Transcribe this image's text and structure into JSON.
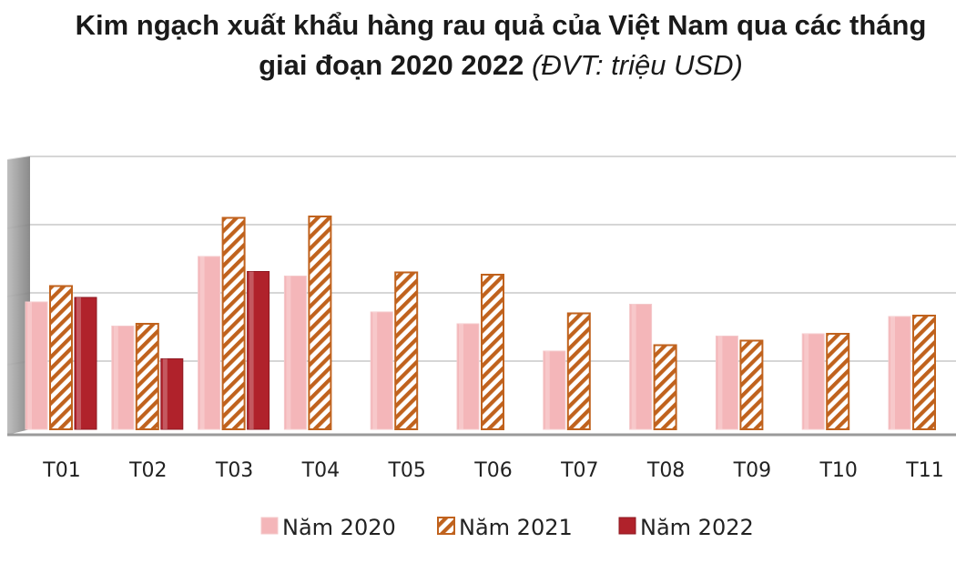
{
  "title": {
    "line1": "Kim ngạch xuất khẩu hàng rau quả của Việt Nam qua các tháng",
    "line2_main": "giai đoạn 2020 2022",
    "line2_unit": "(ĐVT: triệu USD)"
  },
  "colors": {
    "s2020_fill": "#f4b6b9",
    "s2021_stroke": "#c0621d",
    "s2022_fill": "#b0222b",
    "grid": "#d6d6d6",
    "axis_wall": "#8a8a8a"
  },
  "chart_data": {
    "type": "bar",
    "title": "Kim ngạch xuất khẩu hàng rau quả của Việt Nam qua các tháng giai đoạn 2020 2022 (ĐVT: triệu USD)",
    "categories": [
      "T01",
      "T02",
      "T03",
      "T04",
      "T05",
      "T06",
      "T07",
      "T08",
      "T09",
      "T10",
      "T11"
    ],
    "series": [
      {
        "name": "Năm 2020",
        "values": [
          280,
          227,
          380,
          337,
          258,
          232,
          172,
          275,
          205,
          210,
          248
        ]
      },
      {
        "name": "Năm 2021",
        "values": [
          315,
          232,
          465,
          468,
          345,
          340,
          255,
          185,
          195,
          210,
          250
        ]
      },
      {
        "name": "Năm 2022",
        "values": [
          290,
          155,
          347,
          null,
          null,
          null,
          null,
          null,
          null,
          null,
          null
        ]
      }
    ],
    "ylim": [
      0,
      600
    ],
    "grid": true,
    "legend": "bottom"
  }
}
